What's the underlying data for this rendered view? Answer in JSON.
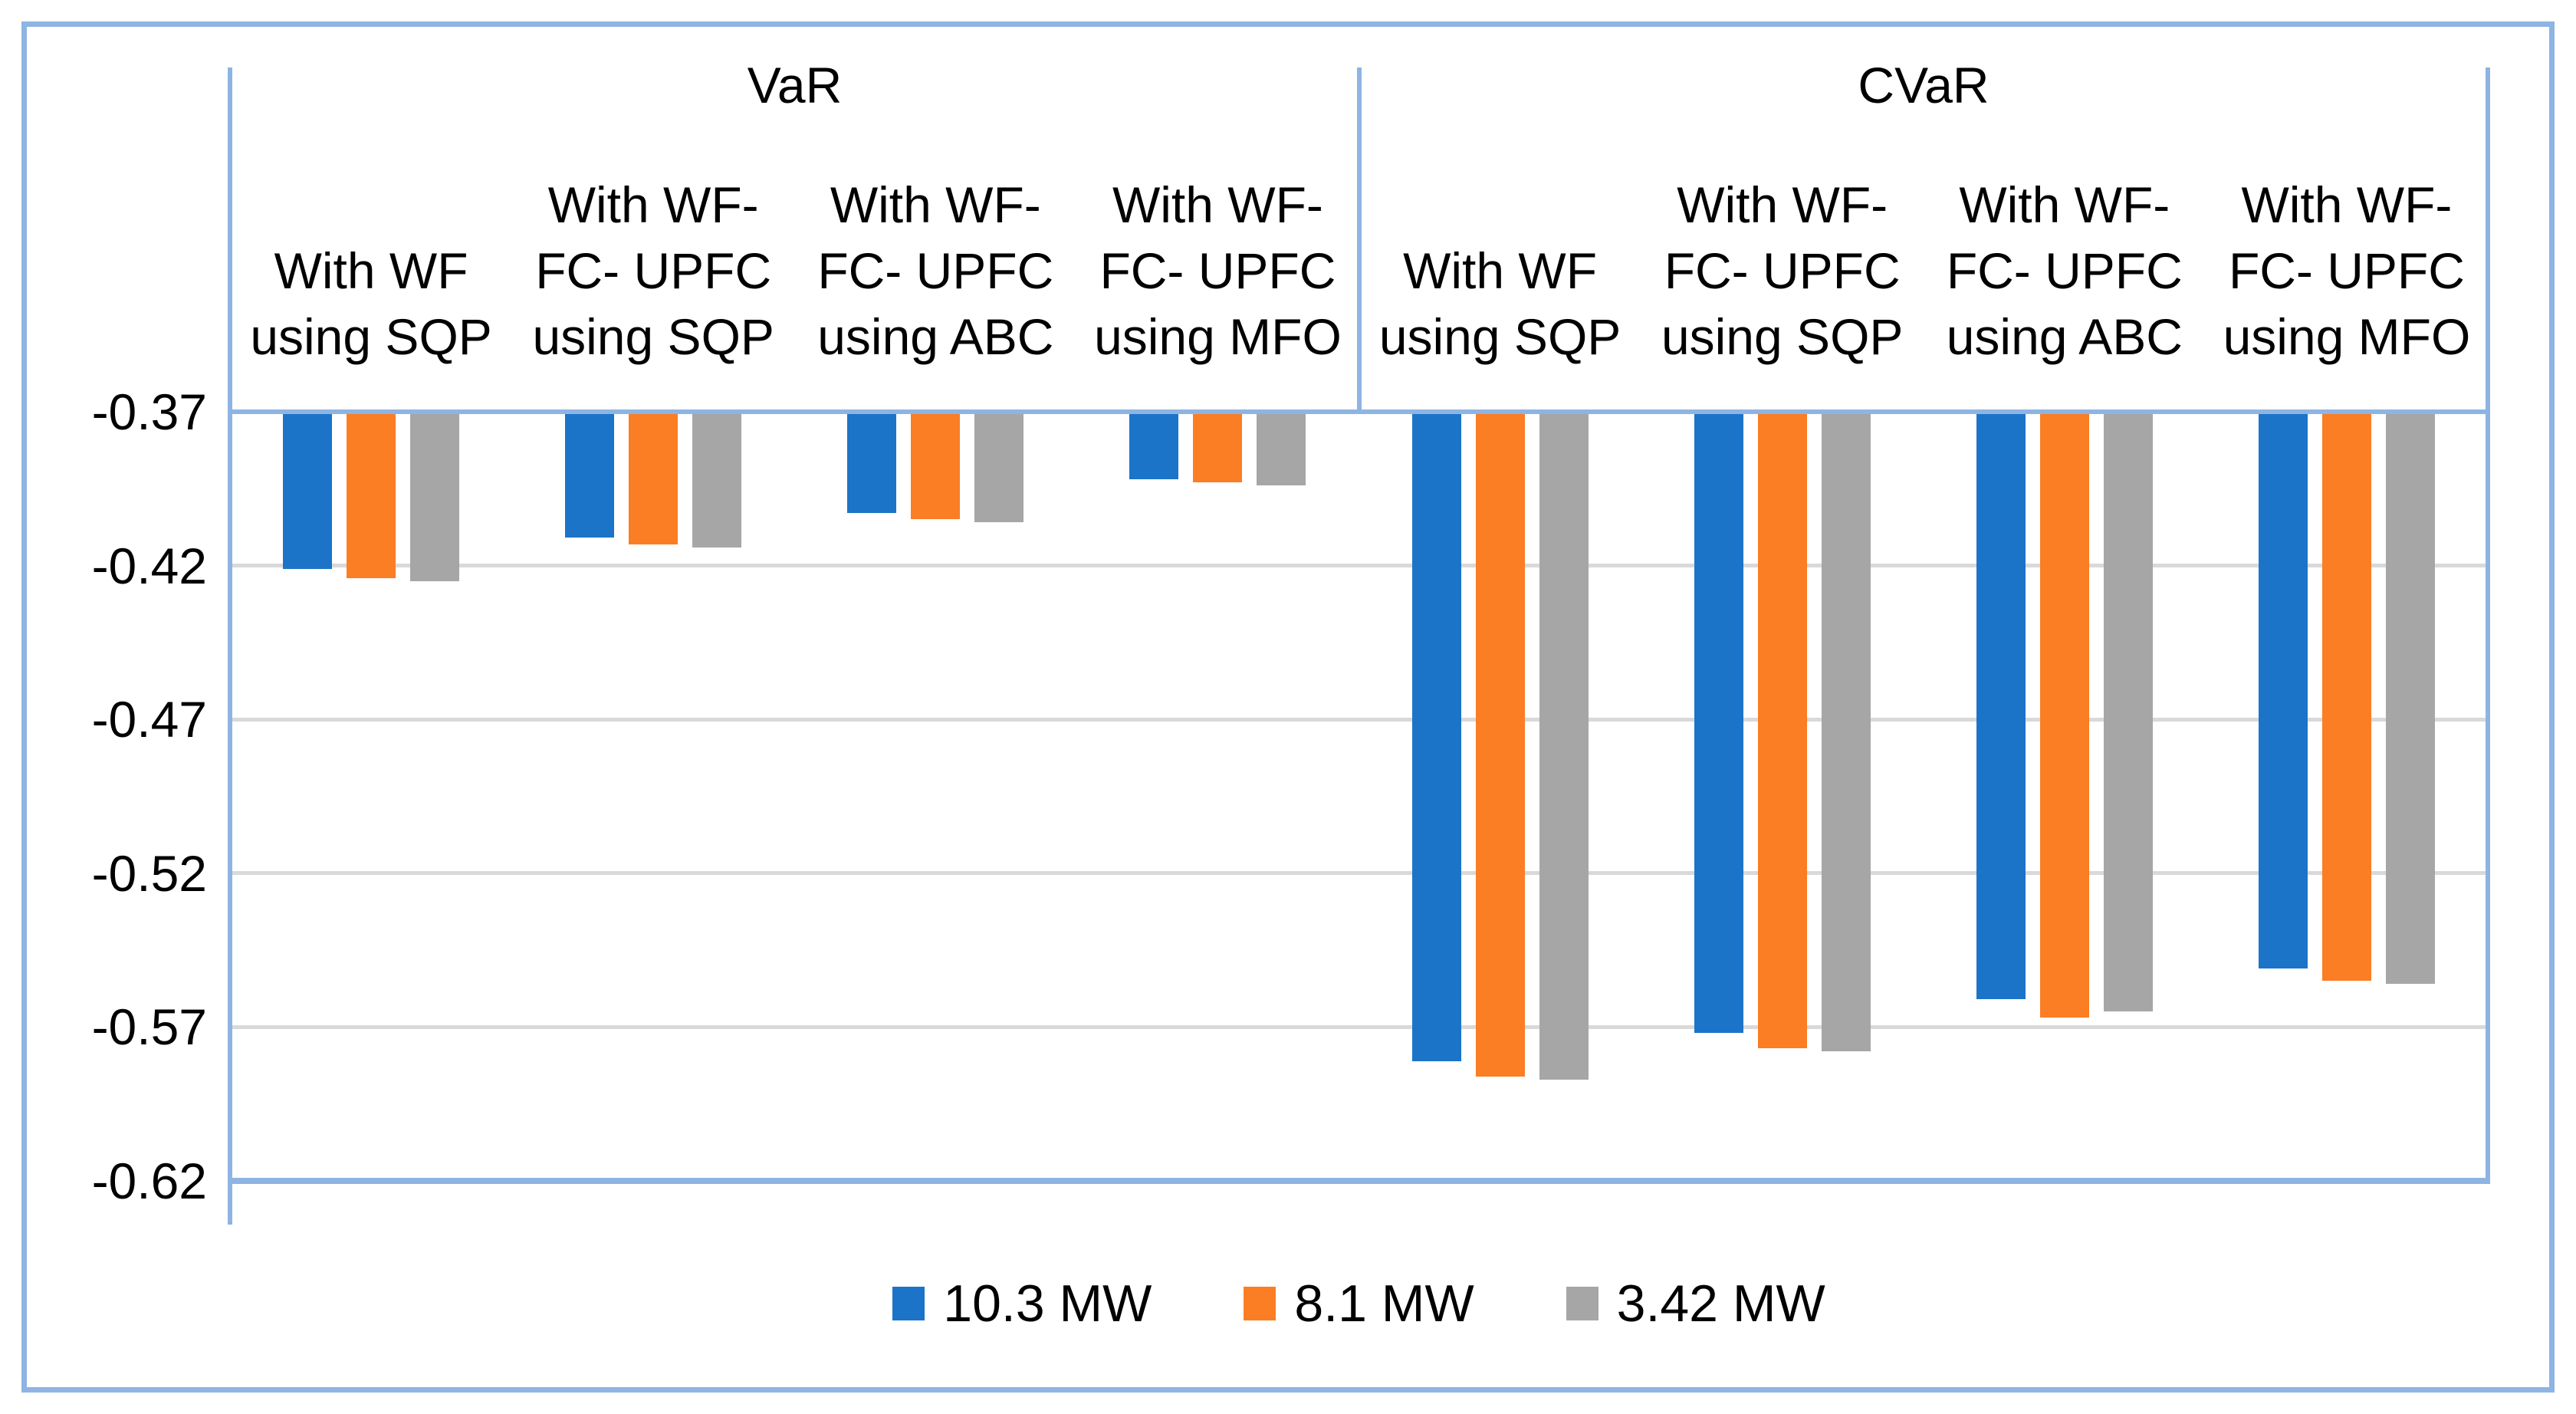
{
  "chart_data": {
    "type": "bar",
    "title": "",
    "orientation": "vertical",
    "group_headers": [
      "VaR",
      "CVaR"
    ],
    "categories": [
      {
        "group": "VaR",
        "lines": [
          "With WF",
          "using SQP"
        ]
      },
      {
        "group": "VaR",
        "lines": [
          "With WF-",
          "FC- UPFC",
          "using SQP"
        ]
      },
      {
        "group": "VaR",
        "lines": [
          "With WF-",
          "FC- UPFC",
          "using ABC"
        ]
      },
      {
        "group": "VaR",
        "lines": [
          "With WF-",
          "FC- UPFC",
          "using MFO"
        ]
      },
      {
        "group": "CVaR",
        "lines": [
          "With WF",
          "using SQP"
        ]
      },
      {
        "group": "CVaR",
        "lines": [
          "With WF-",
          "FC- UPFC",
          "using SQP"
        ]
      },
      {
        "group": "CVaR",
        "lines": [
          "With WF-",
          "FC- UPFC",
          "using ABC"
        ]
      },
      {
        "group": "CVaR",
        "lines": [
          "With WF-",
          "FC- UPFC",
          "using MFO"
        ]
      }
    ],
    "series": [
      {
        "name": "10.3 MW",
        "color": "#1B74C8",
        "values": [
          -0.421,
          -0.411,
          -0.403,
          -0.392,
          -0.581,
          -0.572,
          -0.561,
          -0.551
        ]
      },
      {
        "name": "8.1 MW",
        "color": "#FB7D24",
        "values": [
          -0.424,
          -0.413,
          -0.405,
          -0.393,
          -0.586,
          -0.577,
          -0.567,
          -0.555
        ]
      },
      {
        "name": "3.42 MW",
        "color": "#A6A6A6",
        "values": [
          -0.425,
          -0.414,
          -0.406,
          -0.394,
          -0.587,
          -0.578,
          -0.565,
          -0.556
        ]
      }
    ],
    "y_axis": {
      "baseline": -0.37,
      "min": -0.62,
      "max": -0.37,
      "tick_values": [
        -0.37,
        -0.42,
        -0.47,
        -0.52,
        -0.57,
        -0.62
      ],
      "tick_labels": [
        "-0.37",
        "-0.42",
        "-0.47",
        "-0.52",
        "-0.57",
        "-0.62"
      ]
    },
    "legend": {
      "position": "bottom",
      "entries": [
        "10.3 MW",
        "8.1 MW",
        "3.42 MW"
      ]
    },
    "grid": true,
    "colors": {
      "frame": "#8EB4E3",
      "gridline": "#D9D9D9",
      "text": "#000000",
      "background": "#FFFFFF"
    }
  }
}
